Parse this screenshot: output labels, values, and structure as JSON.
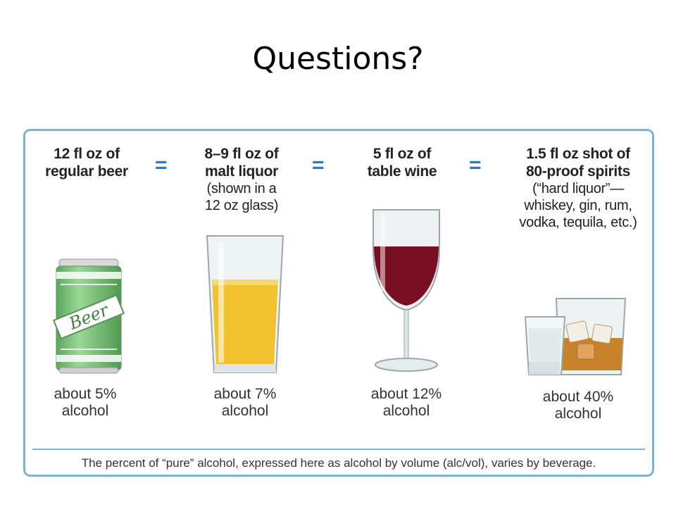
{
  "slide": {
    "title": "Questions?"
  },
  "columns": [
    {
      "head_bold": [
        "12 fl oz of",
        "regular beer"
      ],
      "head_sub": [],
      "percent": [
        "about 5%",
        "alcohol"
      ],
      "icon": "beer-can-icon",
      "can_label": "Beer"
    },
    {
      "head_bold": [
        "8–9 fl oz of",
        "malt liquor"
      ],
      "head_sub": [
        "(shown in a",
        "12 oz glass)"
      ],
      "percent": [
        "about 7%",
        "alcohol"
      ],
      "icon": "pint-glass-icon"
    },
    {
      "head_bold": [
        "5 fl oz of",
        "table wine"
      ],
      "head_sub": [],
      "percent": [
        "about 12%",
        "alcohol"
      ],
      "icon": "wine-glass-icon"
    },
    {
      "head_bold": [
        "1.5 fl oz shot of",
        "80-proof spirits"
      ],
      "head_sub": [
        "(“hard liquor”—",
        "whiskey, gin, rum,",
        "vodka, tequila, etc.)"
      ],
      "percent": [
        "about 40%",
        "alcohol"
      ],
      "icon": "spirits-glasses-icon"
    }
  ],
  "equals_sign": "=",
  "footer": "The percent of “pure” alcohol, expressed here as alcohol by volume (alc/vol), varies by beverage.",
  "colors": {
    "border": "#7eb1dc",
    "equals": "#2f79c0",
    "beer_can": "#7cc47a",
    "malt": "#f2c12e",
    "wine": "#7a0f24",
    "whiskey": "#c8822a"
  }
}
